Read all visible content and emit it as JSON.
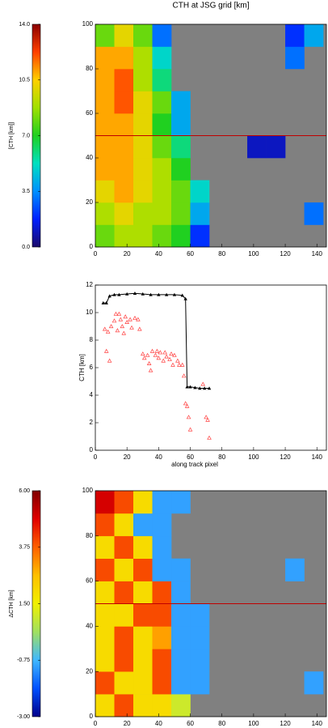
{
  "chart_data": [
    {
      "type": "heatmap",
      "title": "CTH at JSG grid [km]",
      "x": [
        6,
        18,
        30,
        42,
        54,
        66,
        78,
        90,
        102,
        114,
        126,
        138
      ],
      "y": [
        5,
        15,
        25,
        35,
        45,
        55,
        65,
        75,
        85,
        95
      ],
      "values": [
        [
          8,
          9,
          9,
          8,
          7,
          2,
          null,
          null,
          null,
          null,
          null,
          null
        ],
        [
          9,
          10,
          9,
          9,
          8,
          4,
          null,
          null,
          null,
          null,
          null,
          3
        ],
        [
          10,
          11,
          10,
          9,
          8,
          5,
          null,
          null,
          null,
          null,
          null,
          null
        ],
        [
          11,
          11,
          10,
          9,
          7,
          null,
          null,
          null,
          null,
          null,
          null,
          null
        ],
        [
          11,
          11,
          10,
          8,
          6,
          null,
          null,
          null,
          1,
          1,
          null,
          null
        ],
        [
          11,
          11,
          10,
          7,
          4,
          null,
          null,
          null,
          null,
          null,
          null,
          null
        ],
        [
          11,
          12,
          10,
          8,
          4,
          null,
          null,
          null,
          null,
          null,
          null,
          null
        ],
        [
          11,
          12,
          9,
          6,
          null,
          null,
          null,
          null,
          null,
          null,
          null,
          null
        ],
        [
          11,
          11,
          9,
          5,
          null,
          null,
          null,
          null,
          null,
          null,
          3,
          null
        ],
        [
          8,
          10,
          8,
          3,
          null,
          null,
          null,
          null,
          null,
          null,
          2,
          4
        ]
      ],
      "xlim": [
        0,
        146
      ],
      "ylim": [
        0,
        100
      ],
      "xticks": [
        0,
        20,
        40,
        60,
        80,
        100,
        120,
        140
      ],
      "yticks": [
        0,
        20,
        40,
        60,
        80,
        100
      ],
      "missing_color": "#808080",
      "hline": {
        "value": 50,
        "color": "#c00000"
      },
      "colorbar": {
        "label": "[CTH [km]]",
        "lim": [
          0,
          14
        ],
        "ticks": [
          {
            "value": 0,
            "label": "0.0"
          },
          3.5,
          {
            "value": 7,
            "label": "7.0"
          },
          10.5,
          {
            "value": 14,
            "label": "14.0"
          }
        ],
        "colors": [
          "#1b0a6b",
          "#0020ff",
          "#0090ff",
          "#00e0c0",
          "#20d020",
          "#a0e000",
          "#ffd000",
          "#ff4000",
          "#8b0000"
        ]
      }
    },
    {
      "type": "line",
      "xlabel": "along track pixel",
      "ylabel": "CTH [km]",
      "xlim": [
        0,
        146
      ],
      "ylim": [
        0,
        12
      ],
      "xticks": [
        0,
        20,
        40,
        60,
        80,
        100,
        120,
        140
      ],
      "yticks": [
        0,
        2,
        4,
        6,
        8,
        10,
        12
      ],
      "series": [
        {
          "color": "#000000",
          "style": "line",
          "x": [
            5,
            7,
            9,
            12,
            15,
            20,
            25,
            30,
            35,
            40,
            45,
            50,
            55,
            57,
            58,
            60,
            63,
            66,
            69,
            72
          ],
          "values": [
            10.7,
            10.7,
            11.2,
            11.3,
            11.3,
            11.35,
            11.4,
            11.35,
            11.3,
            11.3,
            11.3,
            11.3,
            11.25,
            11.0,
            4.6,
            4.6,
            4.55,
            4.5,
            4.5,
            4.5
          ]
        },
        {
          "color": "#ff4040",
          "style": "markers",
          "x": [
            6,
            7,
            8,
            9,
            10,
            12,
            13,
            14,
            15,
            16,
            17,
            18,
            19,
            20,
            22,
            23,
            25,
            27,
            28,
            30,
            31,
            33,
            34,
            35,
            36,
            38,
            39,
            40,
            41,
            43,
            44,
            45,
            47,
            48,
            49,
            50,
            52,
            53,
            55,
            56,
            57,
            58,
            59,
            60,
            68,
            70,
            71,
            72
          ],
          "values": [
            8.8,
            7.2,
            8.6,
            6.5,
            9.0,
            9.4,
            9.9,
            8.7,
            9.9,
            9.5,
            9.0,
            8.5,
            9.7,
            9.3,
            9.5,
            8.9,
            9.6,
            9.5,
            8.8,
            7.0,
            6.7,
            6.9,
            6.3,
            5.8,
            7.2,
            6.9,
            7.2,
            6.7,
            7.1,
            6.5,
            7.1,
            6.8,
            6.6,
            7.0,
            6.2,
            6.9,
            6.5,
            6.2,
            6.2,
            5.4,
            3.4,
            3.2,
            2.4,
            1.5,
            4.8,
            2.4,
            2.2,
            0.9
          ]
        }
      ]
    },
    {
      "type": "heatmap",
      "x": [
        6,
        18,
        30,
        42,
        54,
        66,
        78,
        90,
        102,
        114,
        126,
        138
      ],
      "y": [
        5,
        15,
        25,
        35,
        45,
        55,
        65,
        75,
        85,
        95
      ],
      "values": [
        [
          2,
          4,
          2,
          2,
          1,
          null,
          null,
          null,
          null,
          null,
          null,
          null
        ],
        [
          4,
          2,
          2,
          4,
          -1,
          -1,
          null,
          null,
          null,
          null,
          null,
          -1
        ],
        [
          2,
          4,
          2,
          4,
          -1,
          -1,
          null,
          null,
          null,
          null,
          null,
          null
        ],
        [
          2,
          4,
          2,
          3,
          -1,
          -1,
          null,
          null,
          null,
          null,
          null,
          null
        ],
        [
          2,
          2,
          4,
          4,
          -1,
          -1,
          null,
          null,
          null,
          null,
          null,
          null
        ],
        [
          2,
          4,
          2,
          4,
          -1,
          null,
          null,
          null,
          null,
          null,
          null,
          null
        ],
        [
          4,
          2,
          4,
          -1,
          -1,
          null,
          null,
          null,
          null,
          null,
          -1,
          null
        ],
        [
          2,
          4,
          2,
          -1,
          null,
          null,
          null,
          null,
          null,
          null,
          null,
          null
        ],
        [
          4,
          2,
          -1,
          -1,
          null,
          null,
          null,
          null,
          null,
          null,
          null,
          null
        ],
        [
          5,
          4,
          2,
          -1,
          -1,
          null,
          null,
          null,
          null,
          null,
          null,
          null
        ]
      ],
      "xlim": [
        0,
        146
      ],
      "ylim": [
        0,
        100
      ],
      "xticks": [
        0,
        20,
        40,
        60,
        80,
        100,
        120,
        140
      ],
      "yticks": [
        0,
        20,
        40,
        60,
        80,
        100
      ],
      "missing_color": "#808080",
      "hline": {
        "value": 50,
        "color": "#c00000"
      },
      "colorbar": {
        "label": "ΔCTH [km]",
        "lim": [
          -3,
          6
        ],
        "ticks": [
          {
            "value": -3,
            "label": "-3.00"
          },
          {
            "value": -0.75,
            "label": "-0.75"
          },
          {
            "value": 1.5,
            "label": "1.50"
          },
          {
            "value": 3.75,
            "label": "3.75"
          },
          {
            "value": 6,
            "label": "6.00"
          }
        ],
        "colors": [
          "#00008b",
          "#0050ff",
          "#40b8ff",
          "#a0e060",
          "#f0f000",
          "#ffc000",
          "#ff6000",
          "#e00000",
          "#800000"
        ]
      }
    }
  ]
}
